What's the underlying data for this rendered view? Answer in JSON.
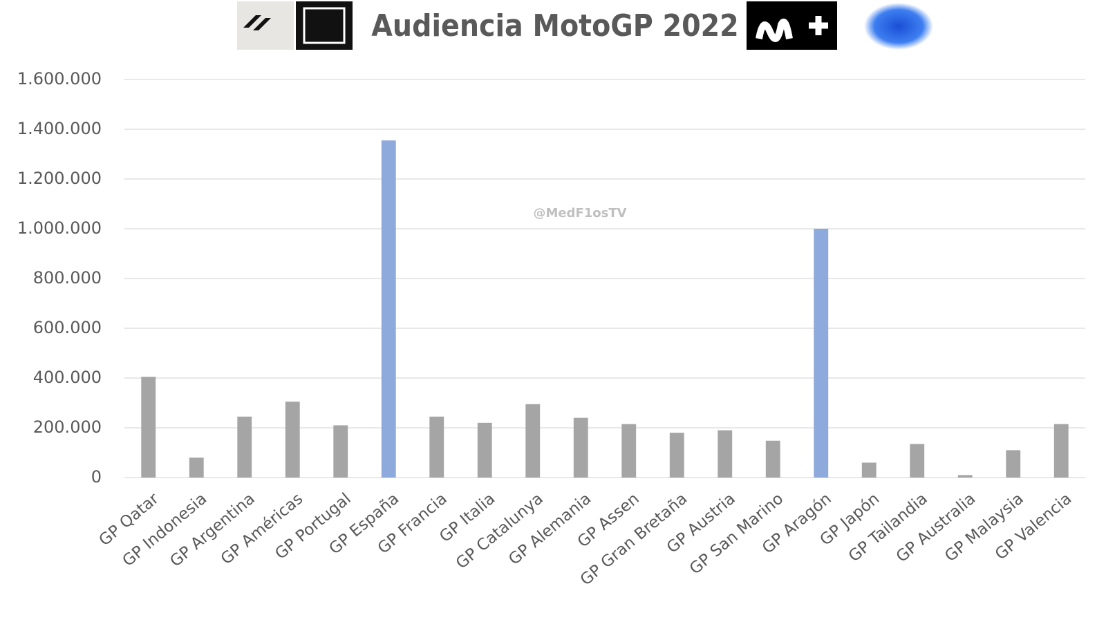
{
  "chart_data": {
    "type": "bar",
    "title": "Audiencia MotoGP 2022",
    "watermark": "@MedF1osTV",
    "categories": [
      "GP Qatar",
      "GP Indonesia",
      "GP Argentina",
      "GP Américas",
      "GP Portugal",
      "GP España",
      "GP Francia",
      "GP Italia",
      "GP Catalunya",
      "GP Alemania",
      "GP Assen",
      "GP Gran Bretaña",
      "GP Austria",
      "GP San Marino",
      "GP Aragón",
      "GP Japón",
      "GP Tailandia",
      "GP Australia",
      "GP Malaysia",
      "GP Valencia"
    ],
    "values": [
      405000,
      80000,
      245000,
      305000,
      210000,
      1355000,
      245000,
      220000,
      295000,
      240000,
      215000,
      180000,
      190000,
      148000,
      1000000,
      60000,
      135000,
      10000,
      110000,
      215000
    ],
    "colors": [
      "#a5a5a5",
      "#a5a5a5",
      "#a5a5a5",
      "#a5a5a5",
      "#a5a5a5",
      "#8ea9db",
      "#a5a5a5",
      "#a5a5a5",
      "#a5a5a5",
      "#a5a5a5",
      "#a5a5a5",
      "#a5a5a5",
      "#a5a5a5",
      "#a5a5a5",
      "#8ea9db",
      "#a5a5a5",
      "#a5a5a5",
      "#a5a5a5",
      "#a5a5a5",
      "#a5a5a5"
    ],
    "ylim": [
      0,
      1600000
    ],
    "yticks": [
      0,
      {
        "value": 200000,
        "label": "200.000"
      },
      {
        "value": 400000,
        "label": "400.000"
      },
      {
        "value": 600000,
        "label": "600.000"
      },
      {
        "value": 800000,
        "label": "800.000"
      },
      {
        "value": 1000000,
        "label": "1.000.000"
      },
      {
        "value": 1200000,
        "label": "1.200.000"
      },
      {
        "value": 1400000,
        "label": "1.400.000"
      },
      {
        "value": 1600000,
        "label": "1.600.000"
      }
    ],
    "grid": true
  }
}
